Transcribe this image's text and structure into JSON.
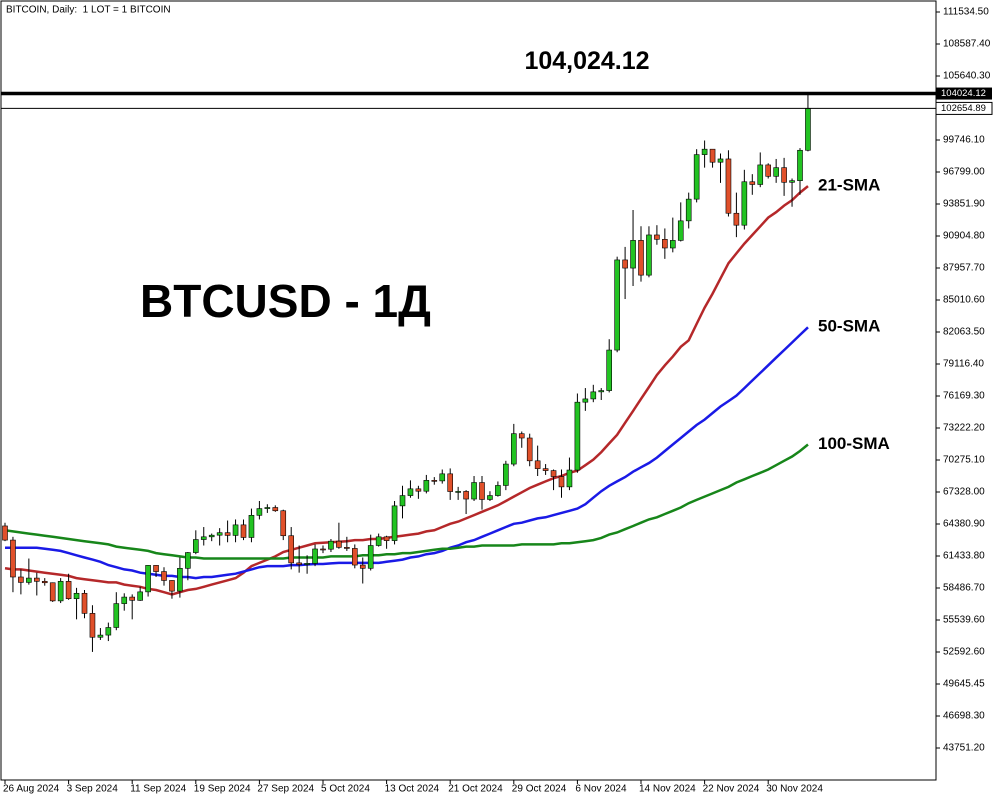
{
  "chart_data": {
    "type": "candlestick",
    "header": "BITCOIN, Daily:  1 LOT = 1 BITCOIN",
    "title": "BTCUSD - 1Д",
    "categories": [
      "26 Aug 2024",
      null,
      null,
      null,
      null,
      null,
      null,
      null,
      "3 Sep 2024",
      null,
      null,
      null,
      null,
      null,
      null,
      null,
      "11 Sep 2024",
      null,
      null,
      null,
      null,
      null,
      null,
      null,
      "19 Sep 2024",
      null,
      null,
      null,
      null,
      null,
      null,
      null,
      "27 Sep 2024",
      null,
      null,
      null,
      null,
      null,
      null,
      null,
      "5 Oct 2024",
      null,
      null,
      null,
      null,
      null,
      null,
      null,
      "13 Oct 2024",
      null,
      null,
      null,
      null,
      null,
      null,
      null,
      "21 Oct 2024",
      null,
      null,
      null,
      null,
      null,
      null,
      null,
      "29 Oct 2024",
      null,
      null,
      null,
      null,
      null,
      null,
      null,
      "6 Nov 2024",
      null,
      null,
      null,
      null,
      null,
      null,
      null,
      "14 Nov 2024",
      null,
      null,
      null,
      null,
      null,
      null,
      null,
      "22 Nov 2024",
      null,
      null,
      null,
      null,
      null,
      null,
      null,
      "30 Nov 2024",
      null,
      null,
      null,
      null,
      null
    ],
    "open": [
      64200,
      62900,
      59500,
      59000,
      59400,
      59100,
      58970,
      57300,
      59100,
      57500,
      58000,
      56150,
      53950,
      54150,
      54850,
      57050,
      57650,
      57350,
      58130,
      60570,
      60000,
      59180,
      58200,
      60300,
      61750,
      62950,
      63200,
      63350,
      63580,
      63330,
      64300,
      63140,
      65180,
      65800,
      65900,
      65600,
      63300,
      60800,
      60650,
      60750,
      62080,
      62060,
      62800,
      62230,
      62130,
      60600,
      60300,
      62400,
      63200,
      62850,
      66050,
      67000,
      67620,
      67400,
      68400,
      68350,
      69000,
      67370,
      67380,
      66680,
      68200,
      66640,
      67000,
      67930,
      69900,
      72700,
      72300,
      70200,
      69480,
      69300,
      68750,
      67800,
      69350,
      75600,
      75900,
      76550,
      76670,
      80400,
      88700,
      87950,
      90500,
      87300,
      91000,
      90600,
      89800,
      90500,
      92300,
      94300,
      98400,
      98900,
      97700,
      98000,
      93000,
      91900,
      95900,
      95650,
      97450,
      96400,
      97200,
      95850,
      96000,
      98800
    ],
    "high": [
      64500,
      63200,
      60200,
      61200,
      59900,
      59400,
      59000,
      59400,
      59800,
      58500,
      58300,
      56900,
      54800,
      55300,
      58100,
      58000,
      57900,
      58600,
      60600,
      60600,
      60400,
      59200,
      61300,
      61800,
      63800,
      64100,
      63500,
      64000,
      64700,
      64800,
      64800,
      65800,
      66500,
      66200,
      66100,
      65700,
      64100,
      62400,
      61500,
      62500,
      62400,
      63000,
      64500,
      63200,
      62500,
      61300,
      63400,
      63500,
      63300,
      66500,
      67900,
      68400,
      67900,
      68900,
      68700,
      69400,
      69500,
      67800,
      67500,
      68800,
      68800,
      67400,
      68300,
      70200,
      73600,
      72900,
      72700,
      71600,
      69900,
      69400,
      69400,
      70500,
      76400,
      76900,
      77200,
      76900,
      81400,
      89000,
      89900,
      93300,
      91800,
      91800,
      91900,
      91600,
      92600,
      94000,
      94900,
      98900,
      99700,
      98900,
      98500,
      98800,
      94900,
      97000,
      96600,
      98600,
      97600,
      98000,
      98100,
      96200,
      99000,
      104024.12
    ],
    "low": [
      62800,
      58100,
      57900,
      58800,
      57800,
      58700,
      57200,
      57100,
      57400,
      55600,
      55700,
      52600,
      53700,
      53600,
      54600,
      56400,
      55600,
      57300,
      57700,
      59500,
      58700,
      57500,
      57600,
      59200,
      61600,
      62400,
      62800,
      62400,
      62700,
      62700,
      62900,
      62700,
      64800,
      65400,
      65500,
      62900,
      60200,
      59900,
      59800,
      60500,
      61700,
      61800,
      62100,
      61900,
      60300,
      58900,
      60100,
      62300,
      62100,
      62500,
      64900,
      66800,
      66700,
      67200,
      68000,
      68100,
      66600,
      66600,
      65300,
      66500,
      65700,
      66500,
      66900,
      67500,
      69700,
      71400,
      69700,
      68800,
      68900,
      67500,
      66800,
      67500,
      69100,
      74800,
      75600,
      75800,
      76500,
      80200,
      85100,
      86300,
      86700,
      87100,
      90100,
      88800,
      89400,
      90400,
      91600,
      94000,
      97200,
      97200,
      95800,
      92700,
      90800,
      91500,
      94700,
      95400,
      96200,
      95800,
      94600,
      93600,
      94700,
      98700
    ],
    "close": [
      62900,
      59500,
      59000,
      59400,
      59100,
      58970,
      57300,
      59100,
      57500,
      58000,
      56150,
      53950,
      54150,
      54850,
      57050,
      57650,
      57350,
      58130,
      60570,
      60000,
      59180,
      58200,
      60300,
      61750,
      62950,
      63200,
      63350,
      63580,
      63330,
      64300,
      63140,
      65180,
      65800,
      65900,
      65600,
      63300,
      60800,
      60650,
      60750,
      62080,
      62060,
      62800,
      62230,
      62130,
      60600,
      60300,
      62400,
      63200,
      62850,
      66050,
      67000,
      67620,
      67400,
      68400,
      68350,
      69000,
      67370,
      67380,
      66680,
      68200,
      66640,
      67000,
      67930,
      69900,
      72700,
      72300,
      70200,
      69480,
      69300,
      68750,
      67800,
      69350,
      75600,
      75900,
      76550,
      76670,
      80400,
      88700,
      87950,
      90500,
      87300,
      91000,
      90600,
      89800,
      90500,
      92300,
      94300,
      98400,
      98900,
      97700,
      98000,
      93000,
      91900,
      95900,
      95650,
      97450,
      96400,
      97200,
      95850,
      96000,
      98800,
      102654.89
    ],
    "up_color": "#22c322",
    "down_color": "#e0502a",
    "series": [
      {
        "name": "21-SMA",
        "color": "#b5282a",
        "values": [
          60300,
          60200,
          60200,
          60100,
          60000,
          59900,
          59800,
          59700,
          59600,
          59400,
          59300,
          59200,
          59100,
          59000,
          59000,
          58800,
          58700,
          58600,
          58400,
          58300,
          58100,
          57900,
          58100,
          58300,
          58400,
          58600,
          58800,
          59000,
          59200,
          59400,
          59900,
          60500,
          60800,
          61100,
          61400,
          61800,
          62000,
          62200,
          62400,
          62600,
          62650,
          62700,
          62750,
          62800,
          62900,
          62900,
          63000,
          63000,
          63100,
          63200,
          63300,
          63400,
          63500,
          63700,
          63800,
          64100,
          64400,
          64600,
          64900,
          65200,
          65500,
          65800,
          66100,
          66500,
          66900,
          67300,
          67700,
          68000,
          68300,
          68600,
          68800,
          69100,
          69300,
          69800,
          70300,
          71000,
          71800,
          72600,
          73700,
          74800,
          75900,
          77000,
          78100,
          79000,
          79800,
          80700,
          81300,
          82800,
          84300,
          85600,
          87000,
          88400,
          89300,
          90200,
          91000,
          91800,
          92600,
          93100,
          93700,
          94200,
          94900,
          95500
        ]
      },
      {
        "name": "50-SMA",
        "color": "#1a1ae6",
        "values": [
          62200,
          62200,
          62200,
          62200,
          62200,
          62100,
          62000,
          61900,
          61700,
          61500,
          61300,
          61100,
          60900,
          60600,
          60400,
          60200,
          60100,
          59900,
          59800,
          59700,
          59600,
          59600,
          59500,
          59500,
          59400,
          59500,
          59500,
          59600,
          59700,
          59800,
          60000,
          60200,
          60400,
          60500,
          60500,
          60500,
          60600,
          60600,
          60650,
          60700,
          60700,
          60750,
          60800,
          60800,
          60800,
          60800,
          60800,
          60800,
          60900,
          61000,
          61100,
          61300,
          61400,
          61600,
          61700,
          61900,
          62200,
          62400,
          62700,
          62900,
          63200,
          63500,
          63800,
          64100,
          64400,
          64500,
          64700,
          64900,
          65000,
          65200,
          65400,
          65600,
          65800,
          66200,
          66800,
          67400,
          67900,
          68300,
          68700,
          69200,
          69600,
          70000,
          70500,
          71100,
          71700,
          72300,
          72900,
          73500,
          74000,
          74600,
          75200,
          75700,
          76200,
          76900,
          77600,
          78300,
          79000,
          79700,
          80400,
          81100,
          81800,
          82500
        ]
      },
      {
        "name": "100-SMA",
        "color": "#17861a",
        "values": [
          63800,
          63700,
          63600,
          63500,
          63400,
          63300,
          63200,
          63100,
          63000,
          62900,
          62800,
          62700,
          62600,
          62500,
          62300,
          62200,
          62100,
          62000,
          61900,
          61700,
          61600,
          61500,
          61400,
          61300,
          61300,
          61200,
          61200,
          61200,
          61200,
          61200,
          61200,
          61200,
          61200,
          61200,
          61200,
          61200,
          61300,
          61300,
          61300,
          61300,
          61300,
          61400,
          61400,
          61400,
          61400,
          61500,
          61500,
          61500,
          61600,
          61600,
          61700,
          61700,
          61800,
          61900,
          62000,
          62100,
          62100,
          62200,
          62300,
          62300,
          62400,
          62400,
          62400,
          62400,
          62400,
          62500,
          62500,
          62500,
          62500,
          62500,
          62600,
          62600,
          62700,
          62800,
          62900,
          63100,
          63400,
          63600,
          63900,
          64200,
          64500,
          64800,
          65000,
          65300,
          65600,
          65900,
          66300,
          66600,
          66900,
          67200,
          67500,
          67800,
          68200,
          68500,
          68800,
          69100,
          69400,
          69800,
          70200,
          70600,
          71100,
          71700
        ]
      }
    ],
    "levels": [
      {
        "value": 104024.12,
        "label": "104,024.12"
      }
    ],
    "ylim": [
      40804,
      112455
    ],
    "yticks": [
      {
        "value": 43751.2,
        "label": "43751.20"
      },
      {
        "value": 46698.3,
        "label": "46698.30"
      },
      49645.45,
      {
        "value": 52592.6,
        "label": "52592.60"
      },
      {
        "value": 55539.6,
        "label": "55539.60"
      },
      {
        "value": 58486.7,
        "label": "58486.70"
      },
      {
        "value": 61433.8,
        "label": "61433.80"
      },
      {
        "value": 64380.9,
        "label": "64380.90"
      },
      {
        "value": 67328,
        "label": "67328.00"
      },
      {
        "value": 70275.1,
        "label": "70275.10"
      },
      {
        "value": 73222.2,
        "label": "73222.20"
      },
      {
        "value": 76169.3,
        "label": "76169.30"
      },
      {
        "value": 79116.4,
        "label": "79116.40"
      },
      {
        "value": 82063.5,
        "label": "82063.50"
      },
      {
        "value": 85010.6,
        "label": "85010.60"
      },
      {
        "value": 87957.7,
        "label": "87957.70"
      },
      {
        "value": 90904.8,
        "label": "90904.80"
      },
      {
        "value": 93851.9,
        "label": "93851.90"
      },
      {
        "value": 96799,
        "label": "96799.00"
      },
      {
        "value": 99746.1,
        "label": "99746.10"
      },
      {
        "value": 105640.3,
        "label": "105640.30"
      },
      {
        "value": 108587.4,
        "label": "108587.40"
      },
      {
        "value": 111534.5,
        "label": "111534.50"
      }
    ],
    "grid": false
  }
}
